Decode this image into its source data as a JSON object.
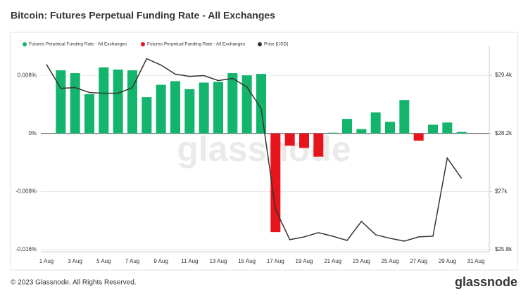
{
  "chart_data": {
    "type": "bar-line",
    "title": "Bitcoin: Futures Perpetual Funding Rate - All Exchanges",
    "watermark": "glassnode",
    "categories": [
      "1 Aug",
      null,
      "3 Aug",
      null,
      "5 Aug",
      null,
      "7 Aug",
      null,
      "9 Aug",
      null,
      "11 Aug",
      null,
      "13 Aug",
      null,
      "15 Aug",
      null,
      "17 Aug",
      null,
      "19 Aug",
      null,
      "21 Aug",
      null,
      "23 Aug",
      null,
      "25 Aug",
      null,
      "27 Aug",
      null,
      "29 Aug",
      null,
      "31 Aug"
    ],
    "series": [
      {
        "name": "Futures Perpetual Funding Rate - All Exchanges",
        "color": "#13b56c",
        "type": "bar",
        "values": [
          null,
          0.0087,
          0.0083,
          0.0054,
          0.0091,
          0.0088,
          0.0087,
          0.005,
          0.0067,
          0.0072,
          0.0061,
          0.007,
          0.0071,
          0.0083,
          0.008,
          0.0082,
          null,
          null,
          null,
          null,
          0.0001,
          0.002,
          0.0006,
          0.0029,
          0.0016,
          0.0046,
          null,
          0.0012,
          0.0015,
          0.0002,
          null
        ]
      },
      {
        "name": "Futures Perpetual Funding Rate - All Exchanges",
        "color": "#e8141c",
        "type": "bar",
        "values": [
          null,
          null,
          null,
          null,
          null,
          null,
          null,
          null,
          null,
          null,
          null,
          null,
          null,
          null,
          null,
          null,
          -0.0136,
          -0.0017,
          -0.002,
          -0.0032,
          null,
          null,
          null,
          null,
          null,
          null,
          -0.001,
          null,
          null,
          null,
          null
        ]
      },
      {
        "name": "Price [USD]",
        "color": "#333333",
        "type": "line",
        "axis": "y2",
        "values": [
          29625,
          29131,
          29145,
          29044,
          29029,
          29029,
          29145,
          29742,
          29611,
          29422,
          29378,
          29393,
          29291,
          29335,
          29160,
          28709,
          26629,
          26004,
          26062,
          26149,
          26076,
          25989,
          26382,
          26105,
          26033,
          25975,
          26062,
          26076,
          27691,
          27269,
          null
        ]
      }
    ],
    "ylim": [
      -0.0163,
      0.0116
    ],
    "yticks": [
      {
        "value": 0.008,
        "label": "0.008%"
      },
      {
        "value": 0,
        "label": "0%"
      },
      {
        "value": -0.008,
        "label": "-0.008%"
      },
      {
        "value": -0.016,
        "label": "-0.016%"
      }
    ],
    "y2lim": [
      25756,
      29938
    ],
    "y2ticks": [
      {
        "value": 29400,
        "label": "$29.4k"
      },
      {
        "value": 28200,
        "label": "$28.2k"
      },
      {
        "value": 27000,
        "label": "$27k"
      },
      {
        "value": 25800,
        "label": "$25.8k"
      }
    ],
    "grid": true
  },
  "footer": "© 2023 Glassnode. All Rights Reserved.",
  "brand": "glassnode"
}
